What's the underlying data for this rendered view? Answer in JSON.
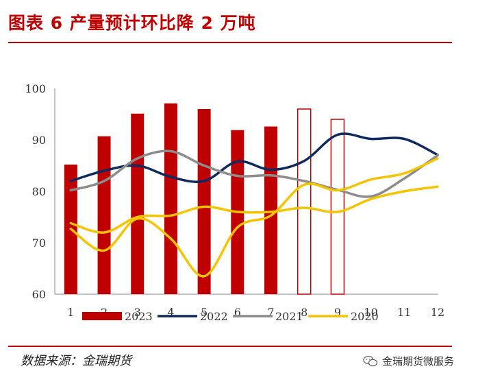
{
  "header": {
    "title": "图表 6 产量预计环比降 2 万吨"
  },
  "footer": {
    "source": "数据来源：金瑞期货",
    "wechat": "金瑞期货微服务"
  },
  "colors": {
    "accent": "#c00000",
    "bar_2023": "#c00000",
    "line_2022": "#0f2a5f",
    "line_2021": "#8c8c8c",
    "line_2020": "#f5c400"
  },
  "chart_data": {
    "type": "bar",
    "title": "",
    "xlabel": "",
    "ylabel": "",
    "ylim": [
      60,
      100
    ],
    "yticks": [
      60,
      70,
      80,
      90,
      100
    ],
    "categories": [
      "1",
      "2",
      "3",
      "4",
      "5",
      "6",
      "7",
      "8",
      "9",
      "10",
      "11",
      "12"
    ],
    "grid": false,
    "legend_position": "bottom",
    "bars": {
      "name": "2023",
      "values": [
        85.2,
        90.7,
        95.1,
        97.1,
        96.0,
        91.9,
        92.6,
        96.0,
        94.0,
        null,
        null,
        null
      ],
      "hollow_from_index": 7
    },
    "series": [
      {
        "name": "2022",
        "type": "line",
        "values": [
          82.0,
          84.0,
          85.0,
          82.8,
          82.0,
          85.8,
          84.2,
          85.9,
          91.0,
          90.2,
          90.2,
          87.1
        ]
      },
      {
        "name": "2021",
        "type": "line",
        "values": [
          80.2,
          82.0,
          86.4,
          87.8,
          85.0,
          83.0,
          83.1,
          82.0,
          80.3,
          79.0,
          82.5,
          87.0
        ]
      },
      {
        "name": "2020",
        "type": "line",
        "values": [
          73.8,
          72.0,
          75.0,
          75.3,
          77.0,
          76.0,
          76.0,
          76.8,
          76.0,
          78.5,
          80.0,
          80.9
        ]
      },
      {
        "name": "2020",
        "type": "line",
        "values": [
          72.7,
          68.5,
          74.7,
          70.8,
          63.5,
          73.0,
          75.3,
          81.3,
          80.2,
          82.3,
          83.5,
          86.4
        ]
      }
    ]
  }
}
